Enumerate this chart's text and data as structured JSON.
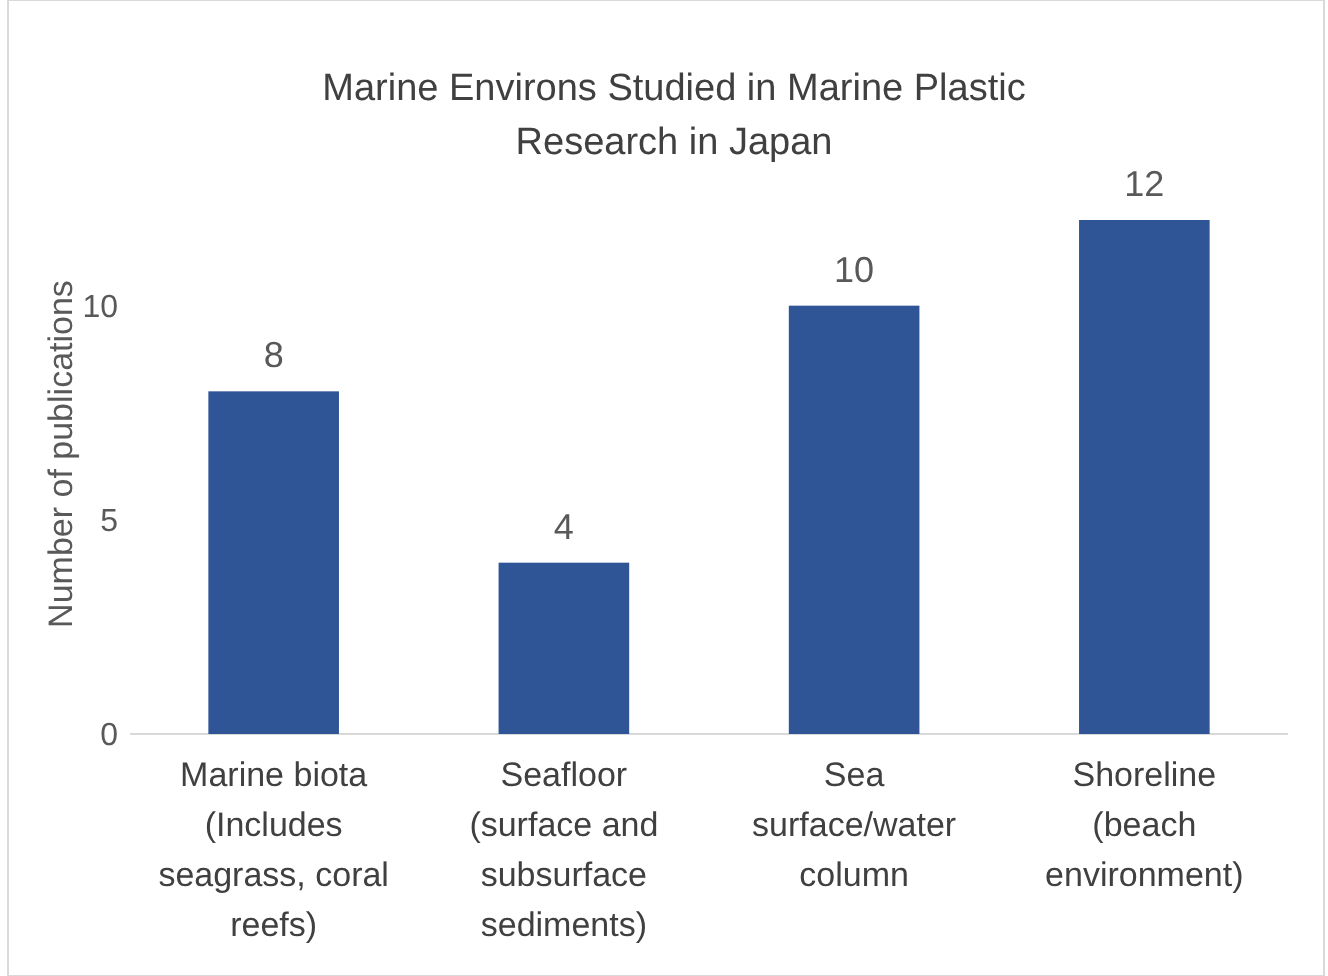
{
  "chart_data": {
    "type": "bar",
    "title": "Marine Environs Studied in Marine Plastic Research in Japan",
    "ylabel": "Number of publications",
    "categories": [
      "Marine biota (Includes seagrass, coral reefs)",
      "Seafloor (surface and subsurface sediments)",
      "Sea surface/water column",
      "Shoreline (beach environment)"
    ],
    "values": [
      8,
      4,
      10,
      12
    ],
    "color": "#2f5597",
    "data_labels": true,
    "ylim": [
      0,
      12
    ],
    "yticks": [
      0,
      5,
      10
    ],
    "grid": false
  }
}
